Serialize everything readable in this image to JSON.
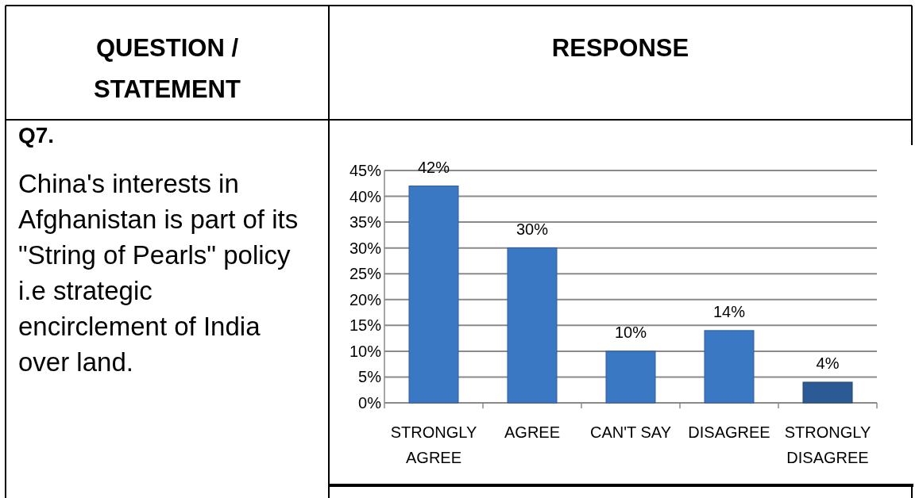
{
  "chart_data": {
    "type": "bar",
    "title": "China's interests in Afghanistan is part of its \"String of Pearls\" policy i.e strategic encirclement of India over land.",
    "annotations": [
      "QUESTION / STATEMENT",
      "RESPONSE",
      "Q7."
    ],
    "categories": [
      "STRONGLY AGREE",
      "AGREE",
      "CAN'T SAY",
      "DISAGREE",
      "STRONGLY DISAGREE"
    ],
    "values": [
      42,
      30,
      10,
      14,
      4
    ],
    "value_labels": [
      "42%",
      "30%",
      "10%",
      "14%",
      "4%"
    ],
    "colors": [
      "#3b78c4",
      "#3b78c4",
      "#3b78c4",
      "#3b78c4",
      "#2c5a95"
    ],
    "ylim": [
      0,
      45
    ],
    "yticks": [
      {
        "value": 0,
        "label": "0%"
      },
      {
        "value": 5,
        "label": "5%"
      },
      {
        "value": 10,
        "label": "10%"
      },
      {
        "value": 15,
        "label": "15%"
      },
      {
        "value": 20,
        "label": "20%"
      },
      {
        "value": 25,
        "label": "25%"
      },
      {
        "value": 30,
        "label": "30%"
      },
      {
        "value": 35,
        "label": "35%"
      },
      {
        "value": 40,
        "label": "40%"
      },
      {
        "value": 45,
        "label": "45%"
      }
    ],
    "grid": "y"
  }
}
